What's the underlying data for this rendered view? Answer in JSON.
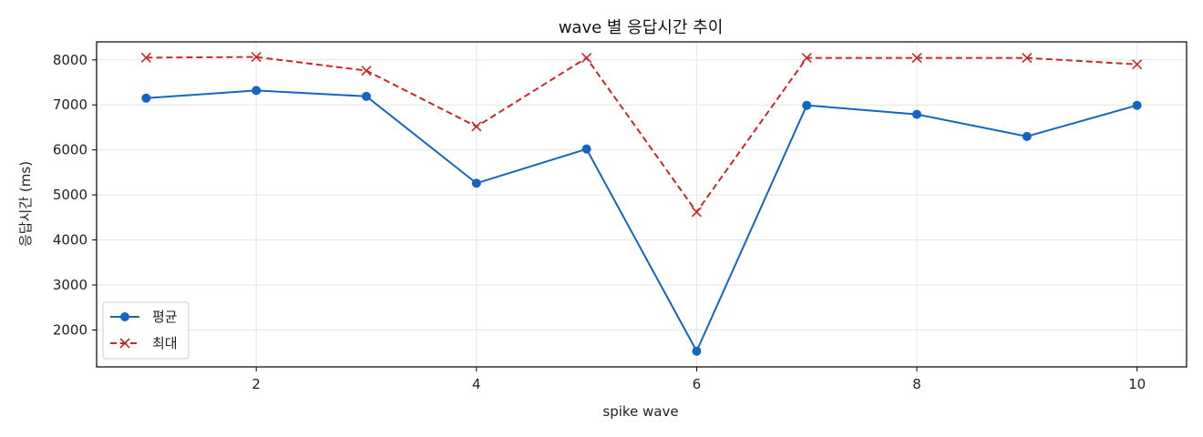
{
  "chart_data": {
    "type": "line",
    "title": "wave 별 응답시간 추이",
    "xlabel": "spike wave",
    "ylabel": "응답시간 (ms)",
    "x": [
      1,
      2,
      3,
      4,
      5,
      6,
      7,
      8,
      9,
      10
    ],
    "xlim": [
      0.55,
      10.45
    ],
    "ylim": [
      1180,
      8400
    ],
    "xticks": [
      2,
      4,
      6,
      8,
      10
    ],
    "yticks": [
      2000,
      3000,
      4000,
      5000,
      6000,
      7000,
      8000
    ],
    "grid": true,
    "legend_position": "lower-left",
    "series": [
      {
        "name": "평균",
        "color": "#1565c0",
        "marker": "circle",
        "linestyle": "solid",
        "values": [
          7150,
          7320,
          7190,
          5260,
          6020,
          1530,
          6990,
          6790,
          6300,
          6990
        ]
      },
      {
        "name": "최대",
        "color": "#c62828",
        "marker": "x",
        "linestyle": "dashed",
        "values": [
          8050,
          8065,
          7760,
          6520,
          8045,
          4620,
          8045,
          8045,
          8045,
          7900
        ]
      }
    ]
  }
}
